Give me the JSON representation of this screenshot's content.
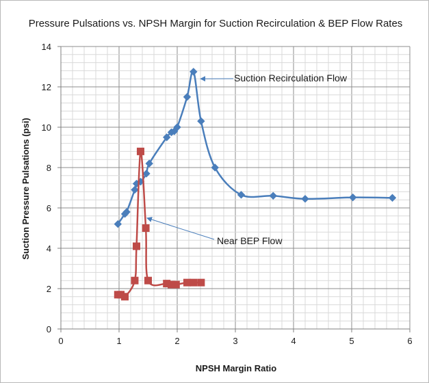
{
  "chart_data": {
    "type": "scatter",
    "title": "Pressure Pulsations vs. NPSH Margin for Suction Recirculation & BEP Flow Rates",
    "xlabel": "NPSH Margin Ratio",
    "ylabel": "Suction Pressure Pulsations (psi)",
    "xlim": [
      0,
      6
    ],
    "ylim": [
      0,
      14
    ],
    "xticks": [
      0,
      1,
      2,
      3,
      4,
      5,
      6
    ],
    "yticks": [
      0,
      2,
      4,
      6,
      8,
      10,
      12,
      14
    ],
    "grid": true,
    "series": [
      {
        "name": "Suction Recirculation Flow",
        "color": "#4a7ebb",
        "marker": "diamond",
        "points": [
          [
            0.98,
            5.2
          ],
          [
            1.1,
            5.7
          ],
          [
            1.13,
            5.8
          ],
          [
            1.27,
            6.9
          ],
          [
            1.3,
            7.2
          ],
          [
            1.37,
            7.3
          ],
          [
            1.47,
            7.7
          ],
          [
            1.52,
            8.2
          ],
          [
            1.82,
            9.5
          ],
          [
            1.9,
            9.75
          ],
          [
            1.95,
            9.8
          ],
          [
            2.0,
            10.0
          ],
          [
            2.17,
            11.5
          ],
          [
            2.28,
            12.75
          ],
          [
            2.41,
            10.3
          ],
          [
            2.65,
            8.0
          ],
          [
            3.1,
            6.65
          ],
          [
            3.65,
            6.6
          ],
          [
            4.2,
            6.45
          ],
          [
            5.02,
            6.52
          ],
          [
            5.7,
            6.5
          ]
        ]
      },
      {
        "name": "Near BEP Flow",
        "color": "#be4b48",
        "marker": "square",
        "points": [
          [
            0.98,
            1.7
          ],
          [
            1.03,
            1.7
          ],
          [
            1.1,
            1.6
          ],
          [
            1.27,
            2.4
          ],
          [
            1.3,
            4.1
          ],
          [
            1.37,
            8.8
          ],
          [
            1.46,
            5.0
          ],
          [
            1.5,
            2.4
          ],
          [
            1.82,
            2.25
          ],
          [
            1.9,
            2.2
          ],
          [
            1.98,
            2.2
          ],
          [
            2.17,
            2.3
          ],
          [
            2.28,
            2.3
          ],
          [
            2.41,
            2.3
          ]
        ]
      }
    ],
    "annotations": [
      {
        "text": "Suction Recirculation Flow",
        "arrow_to_data": [
          2.4,
          12.4
        ]
      },
      {
        "text": "Near BEP Flow",
        "arrow_to_data": [
          1.48,
          5.5
        ]
      }
    ]
  }
}
